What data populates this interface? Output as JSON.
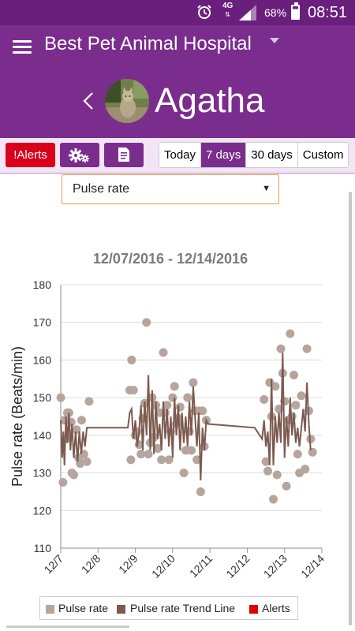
{
  "status_bar": {
    "network": "4G",
    "battery": "68%",
    "time": "08:51",
    "icons": [
      "alarm-clock-icon",
      "signal-icon",
      "battery-icon"
    ]
  },
  "app_bar": {
    "hospital": "Best Pet Animal Hospital",
    "pet_name": "Agatha",
    "menu_icon": "hamburger-menu-icon",
    "back_icon": "chevron-left-icon"
  },
  "toolbar": {
    "alerts_label": "!Alerts",
    "settings_icon": "gears-icon",
    "notes_icon": "notes-icon",
    "ranges": [
      "Today",
      "7 days",
      "30 days",
      "Custom"
    ],
    "active_range": "7 days"
  },
  "metric": {
    "selected": "Pulse rate",
    "arrow": "▼"
  },
  "colors": {
    "primary": "#7b2d8e",
    "status": "#6b1f7c",
    "alert": "#d9001b",
    "scatter": "#b5a59d",
    "trend": "#7d5a4f"
  },
  "chart_data": {
    "type": "scatter",
    "title": "12/07/2016 - 12/14/2016",
    "ylabel": "Pulse rate (Beats/min)",
    "ylim": [
      110,
      180
    ],
    "yticks": [
      110,
      120,
      130,
      140,
      150,
      160,
      170,
      180
    ],
    "xticks": [
      "12/7",
      "12/8",
      "12/9",
      "12/10",
      "12/11",
      "12/12",
      "12/13",
      "12/14"
    ],
    "xlim": [
      0,
      7
    ],
    "grid": true,
    "legend_position": "bottom",
    "series": [
      {
        "name": "Pulse rate",
        "kind": "scatter",
        "points": [
          [
            0.0,
            150
          ],
          [
            0.06,
            127.5
          ],
          [
            0.1,
            144
          ],
          [
            0.14,
            139
          ],
          [
            0.18,
            146
          ],
          [
            0.22,
            146
          ],
          [
            0.28,
            143.5
          ],
          [
            0.3,
            130
          ],
          [
            0.35,
            129.5
          ],
          [
            0.42,
            141.5
          ],
          [
            0.48,
            134
          ],
          [
            0.52,
            132.5
          ],
          [
            0.56,
            144
          ],
          [
            0.62,
            135
          ],
          [
            0.7,
            133
          ],
          [
            0.76,
            149
          ],
          [
            1.85,
            152
          ],
          [
            1.9,
            160
          ],
          [
            1.88,
            133.5
          ],
          [
            1.95,
            152
          ],
          [
            2.0,
            140
          ],
          [
            2.05,
            141
          ],
          [
            2.1,
            137.5
          ],
          [
            2.15,
            135
          ],
          [
            2.2,
            144.5
          ],
          [
            2.25,
            148.5
          ],
          [
            2.3,
            170
          ],
          [
            2.35,
            135
          ],
          [
            2.4,
            138
          ],
          [
            2.45,
            150
          ],
          [
            2.5,
            139.5
          ],
          [
            2.55,
            148
          ],
          [
            2.6,
            136.5
          ],
          [
            2.65,
            146
          ],
          [
            2.7,
            133.5
          ],
          [
            2.75,
            162
          ],
          [
            2.8,
            146
          ],
          [
            2.85,
            148
          ],
          [
            2.9,
            133.5
          ],
          [
            2.95,
            141
          ],
          [
            3.0,
            150
          ],
          [
            3.05,
            153
          ],
          [
            3.1,
            143
          ],
          [
            3.15,
            144.5
          ],
          [
            3.2,
            147.5
          ],
          [
            3.3,
            130
          ],
          [
            3.35,
            136
          ],
          [
            3.4,
            150
          ],
          [
            3.45,
            141
          ],
          [
            3.5,
            136
          ],
          [
            3.55,
            154
          ],
          [
            3.6,
            146.5
          ],
          [
            3.65,
            133.5
          ],
          [
            3.7,
            146.5
          ],
          [
            3.75,
            125
          ],
          [
            3.8,
            146.5
          ],
          [
            3.85,
            137
          ],
          [
            3.9,
            144
          ],
          [
            5.45,
            149.5
          ],
          [
            5.5,
            133
          ],
          [
            5.55,
            130.5
          ],
          [
            5.6,
            154
          ],
          [
            5.65,
            145
          ],
          [
            5.7,
            123
          ],
          [
            5.75,
            153
          ],
          [
            5.8,
            129.5
          ],
          [
            5.85,
            147
          ],
          [
            5.9,
            163
          ],
          [
            5.95,
            156.5
          ],
          [
            6.0,
            149
          ],
          [
            6.05,
            126.5
          ],
          [
            6.1,
            144
          ],
          [
            6.15,
            167
          ],
          [
            6.2,
            145
          ],
          [
            6.25,
            156
          ],
          [
            6.3,
            148
          ],
          [
            6.35,
            135
          ],
          [
            6.4,
            130
          ],
          [
            6.45,
            150.5
          ],
          [
            6.55,
            131
          ],
          [
            6.6,
            163
          ],
          [
            6.65,
            146.5
          ],
          [
            6.7,
            139
          ],
          [
            6.75,
            135.5
          ]
        ]
      },
      {
        "name": "Pulse rate Trend Line",
        "kind": "line",
        "points": [
          [
            0.0,
            144
          ],
          [
            0.04,
            134
          ],
          [
            0.07,
            141
          ],
          [
            0.1,
            132
          ],
          [
            0.14,
            145
          ],
          [
            0.18,
            138
          ],
          [
            0.22,
            146
          ],
          [
            0.26,
            136
          ],
          [
            0.3,
            143
          ],
          [
            0.35,
            134
          ],
          [
            0.4,
            141
          ],
          [
            0.45,
            133
          ],
          [
            0.5,
            141
          ],
          [
            0.55,
            135
          ],
          [
            0.6,
            141
          ],
          [
            0.65,
            137
          ],
          [
            0.7,
            142
          ],
          [
            1.75,
            142
          ],
          [
            1.8,
            142
          ],
          [
            1.85,
            146
          ],
          [
            1.9,
            147
          ],
          [
            1.95,
            139
          ],
          [
            2.0,
            144
          ],
          [
            2.05,
            137
          ],
          [
            2.1,
            141
          ],
          [
            2.15,
            148
          ],
          [
            2.2,
            136
          ],
          [
            2.25,
            149
          ],
          [
            2.3,
            140
          ],
          [
            2.35,
            156
          ],
          [
            2.4,
            136
          ],
          [
            2.45,
            152
          ],
          [
            2.5,
            135
          ],
          [
            2.55,
            149
          ],
          [
            2.6,
            139
          ],
          [
            2.65,
            143
          ],
          [
            2.7,
            136
          ],
          [
            2.75,
            149
          ],
          [
            2.8,
            139
          ],
          [
            2.85,
            147
          ],
          [
            2.9,
            137
          ],
          [
            2.95,
            145
          ],
          [
            3.0,
            134
          ],
          [
            3.05,
            150
          ],
          [
            3.1,
            140
          ],
          [
            3.15,
            148
          ],
          [
            3.2,
            136
          ],
          [
            3.25,
            146
          ],
          [
            3.3,
            138
          ],
          [
            3.35,
            145
          ],
          [
            3.4,
            137
          ],
          [
            3.45,
            149
          ],
          [
            3.5,
            140
          ],
          [
            3.55,
            153
          ],
          [
            3.6,
            145
          ],
          [
            3.65,
            137
          ],
          [
            3.7,
            146
          ],
          [
            3.75,
            128
          ],
          [
            3.8,
            142
          ],
          [
            3.85,
            136
          ],
          [
            3.9,
            144
          ],
          [
            3.95,
            143
          ],
          [
            5.2,
            142
          ],
          [
            5.4,
            139
          ],
          [
            5.45,
            144
          ],
          [
            5.5,
            137
          ],
          [
            5.55,
            141
          ],
          [
            5.6,
            132
          ],
          [
            5.65,
            155
          ],
          [
            5.7,
            132
          ],
          [
            5.75,
            145
          ],
          [
            5.8,
            138
          ],
          [
            5.85,
            146
          ],
          [
            5.9,
            138
          ],
          [
            5.95,
            162
          ],
          [
            6.0,
            134
          ],
          [
            6.05,
            145
          ],
          [
            6.1,
            137
          ],
          [
            6.15,
            150
          ],
          [
            6.2,
            140
          ],
          [
            6.25,
            146
          ],
          [
            6.3,
            138
          ],
          [
            6.35,
            142
          ],
          [
            6.4,
            137
          ],
          [
            6.5,
            147
          ],
          [
            6.55,
            141
          ],
          [
            6.6,
            154
          ],
          [
            6.65,
            143
          ],
          [
            6.7,
            136
          ]
        ]
      },
      {
        "name": "Alerts",
        "kind": "marker",
        "points": []
      }
    ]
  },
  "legend": {
    "items": [
      "Pulse rate",
      "Pulse rate Trend Line",
      "Alerts"
    ]
  }
}
